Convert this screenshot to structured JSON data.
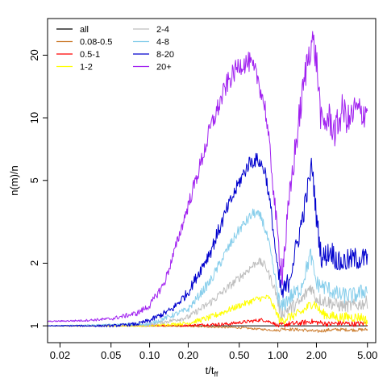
{
  "chart_data": {
    "type": "line",
    "xlabel": "t/t",
    "xlabel_sub": "ff",
    "ylabel": "n(m)/n",
    "x_scale": "log",
    "y_scale": "log",
    "xlim": [
      0.016,
      5.8
    ],
    "ylim": [
      0.83,
      30
    ],
    "xticks": [
      0.02,
      0.05,
      0.1,
      0.2,
      0.5,
      1.0,
      2.0,
      5.0
    ],
    "xtick_labels": [
      "0.02",
      "0.05",
      "0.10",
      "0.20",
      "0.50",
      "1.00",
      "2.00",
      "5.00"
    ],
    "yticks": [
      1,
      2,
      5,
      10,
      20
    ],
    "ytick_labels": [
      "1",
      "2",
      "5",
      "10",
      "20"
    ],
    "grid": false,
    "legend_position": "top-left",
    "series": [
      {
        "name": "all",
        "color": "#000000",
        "noise": 0,
        "points": [
          [
            0.016,
            1.0
          ],
          [
            5.0,
            1.0
          ]
        ]
      },
      {
        "name": "0.08-0.5",
        "color": "#cd7f32",
        "noise": 0.005,
        "points": [
          [
            0.016,
            1.0
          ],
          [
            0.2,
            0.995
          ],
          [
            0.5,
            0.98
          ],
          [
            0.8,
            0.96
          ],
          [
            1.0,
            0.95
          ],
          [
            1.1,
            0.97
          ],
          [
            1.3,
            0.96
          ],
          [
            1.6,
            0.955
          ],
          [
            2.0,
            0.94
          ],
          [
            2.5,
            0.955
          ],
          [
            3.0,
            0.96
          ],
          [
            4.0,
            0.955
          ],
          [
            5.0,
            0.96
          ]
        ]
      },
      {
        "name": "0.5-1",
        "color": "#ff0000",
        "noise": 0.008,
        "points": [
          [
            0.016,
            1.0
          ],
          [
            0.2,
            1.005
          ],
          [
            0.4,
            1.02
          ],
          [
            0.6,
            1.05
          ],
          [
            0.75,
            1.07
          ],
          [
            0.9,
            1.04
          ],
          [
            1.0,
            1.0
          ],
          [
            1.2,
            1.02
          ],
          [
            1.5,
            1.03
          ],
          [
            1.8,
            1.05
          ],
          [
            2.0,
            1.04
          ],
          [
            2.5,
            1.02
          ],
          [
            3.0,
            1.03
          ],
          [
            4.0,
            1.02
          ],
          [
            5.0,
            1.03
          ]
        ]
      },
      {
        "name": "1-2",
        "color": "#ffff00",
        "noise": 0.015,
        "points": [
          [
            0.016,
            1.0
          ],
          [
            0.1,
            1.0
          ],
          [
            0.2,
            1.03
          ],
          [
            0.3,
            1.1
          ],
          [
            0.5,
            1.25
          ],
          [
            0.7,
            1.35
          ],
          [
            0.85,
            1.37
          ],
          [
            0.95,
            1.2
          ],
          [
            1.05,
            1.05
          ],
          [
            1.2,
            1.1
          ],
          [
            1.5,
            1.15
          ],
          [
            1.9,
            1.3
          ],
          [
            2.2,
            1.15
          ],
          [
            2.8,
            1.1
          ],
          [
            3.5,
            1.1
          ],
          [
            4.5,
            1.1
          ],
          [
            5.0,
            1.05
          ]
        ]
      },
      {
        "name": "2-4",
        "color": "#bebebe",
        "noise": 0.02,
        "points": [
          [
            0.016,
            1.0
          ],
          [
            0.1,
            1.01
          ],
          [
            0.2,
            1.1
          ],
          [
            0.3,
            1.3
          ],
          [
            0.5,
            1.7
          ],
          [
            0.7,
            2.05
          ],
          [
            0.8,
            1.95
          ],
          [
            0.95,
            1.5
          ],
          [
            1.05,
            1.15
          ],
          [
            1.2,
            1.2
          ],
          [
            1.5,
            1.3
          ],
          [
            1.8,
            1.55
          ],
          [
            2.0,
            1.35
          ],
          [
            2.5,
            1.3
          ],
          [
            3.0,
            1.25
          ],
          [
            4.0,
            1.25
          ],
          [
            5.0,
            1.3
          ]
        ]
      },
      {
        "name": "4-8",
        "color": "#87ceeb",
        "noise": 0.025,
        "points": [
          [
            0.016,
            1.0
          ],
          [
            0.1,
            1.02
          ],
          [
            0.2,
            1.2
          ],
          [
            0.3,
            1.65
          ],
          [
            0.4,
            2.3
          ],
          [
            0.5,
            2.9
          ],
          [
            0.65,
            3.5
          ],
          [
            0.75,
            3.3
          ],
          [
            0.85,
            2.5
          ],
          [
            0.95,
            1.7
          ],
          [
            1.05,
            1.2
          ],
          [
            1.2,
            1.35
          ],
          [
            1.5,
            1.5
          ],
          [
            1.8,
            2.2
          ],
          [
            2.0,
            1.6
          ],
          [
            2.5,
            1.5
          ],
          [
            3.0,
            1.4
          ],
          [
            4.0,
            1.4
          ],
          [
            5.0,
            1.5
          ]
        ]
      },
      {
        "name": "8-20",
        "color": "#0000cd",
        "noise": 0.035,
        "points": [
          [
            0.016,
            1.0
          ],
          [
            0.05,
            1.0
          ],
          [
            0.08,
            1.02
          ],
          [
            0.1,
            1.06
          ],
          [
            0.15,
            1.2
          ],
          [
            0.2,
            1.45
          ],
          [
            0.3,
            2.3
          ],
          [
            0.4,
            3.6
          ],
          [
            0.5,
            4.9
          ],
          [
            0.6,
            6.1
          ],
          [
            0.7,
            6.3
          ],
          [
            0.8,
            5.5
          ],
          [
            0.9,
            3.3
          ],
          [
            1.0,
            1.8
          ],
          [
            1.08,
            1.4
          ],
          [
            1.2,
            1.6
          ],
          [
            1.4,
            2.4
          ],
          [
            1.6,
            3.6
          ],
          [
            1.85,
            6.0
          ],
          [
            2.0,
            3.3
          ],
          [
            2.2,
            2.1
          ],
          [
            2.6,
            2.3
          ],
          [
            3.0,
            2.0
          ],
          [
            4.0,
            2.1
          ],
          [
            5.0,
            2.1
          ]
        ]
      },
      {
        "name": "20+",
        "color": "#a020f0",
        "noise": 0.05,
        "points": [
          [
            0.016,
            1.05
          ],
          [
            0.03,
            1.06
          ],
          [
            0.05,
            1.08
          ],
          [
            0.08,
            1.15
          ],
          [
            0.1,
            1.25
          ],
          [
            0.13,
            1.6
          ],
          [
            0.15,
            2.1
          ],
          [
            0.2,
            3.8
          ],
          [
            0.25,
            6.0
          ],
          [
            0.3,
            9.0
          ],
          [
            0.4,
            14.5
          ],
          [
            0.5,
            18.0
          ],
          [
            0.6,
            18.5
          ],
          [
            0.7,
            15.5
          ],
          [
            0.8,
            11.0
          ],
          [
            0.9,
            5.5
          ],
          [
            1.0,
            2.6
          ],
          [
            1.08,
            1.8
          ],
          [
            1.15,
            2.6
          ],
          [
            1.3,
            5.5
          ],
          [
            1.5,
            11.0
          ],
          [
            1.7,
            19.0
          ],
          [
            1.85,
            24.0
          ],
          [
            2.0,
            19.0
          ],
          [
            2.2,
            9.0
          ],
          [
            2.5,
            10.0
          ],
          [
            2.8,
            8.5
          ],
          [
            3.2,
            11.0
          ],
          [
            3.6,
            9.5
          ],
          [
            4.0,
            11.0
          ],
          [
            4.5,
            10.5
          ],
          [
            5.0,
            11.0
          ]
        ]
      }
    ]
  }
}
